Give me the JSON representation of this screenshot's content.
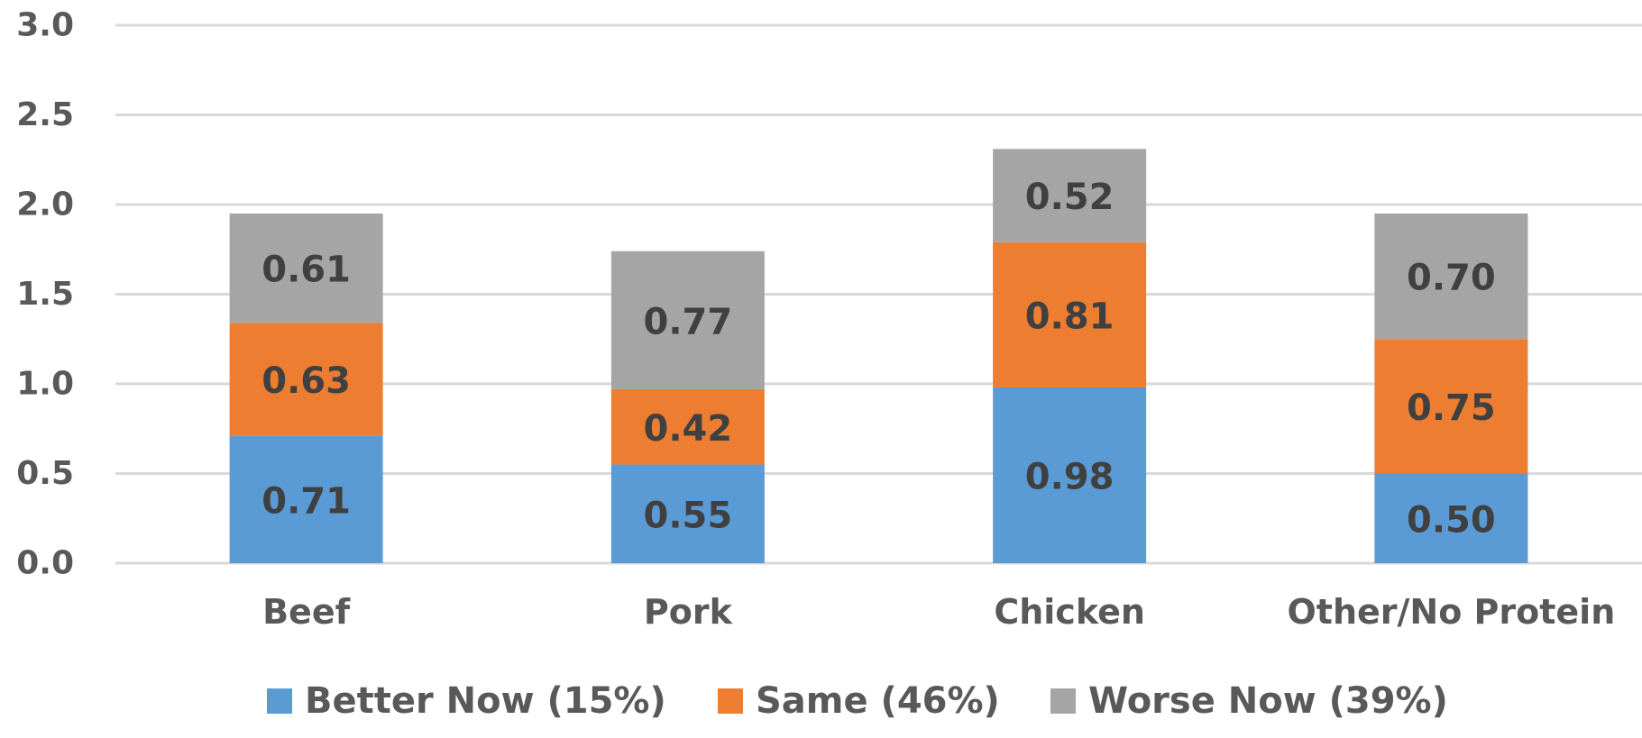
{
  "chart_data": {
    "type": "bar",
    "stacked": true,
    "categories": [
      "Beef",
      "Pork",
      "Chicken",
      "Other/No Protein"
    ],
    "series": [
      {
        "name": "Better Now (15%)",
        "color": "#5b9bd5",
        "values": [
          0.71,
          0.55,
          0.98,
          0.5
        ]
      },
      {
        "name": "Same (46%)",
        "color": "#ed7d31",
        "values": [
          0.63,
          0.42,
          0.81,
          0.75
        ]
      },
      {
        "name": "Worse Now (39%)",
        "color": "#a5a5a5",
        "values": [
          0.61,
          0.77,
          0.52,
          0.7
        ]
      }
    ],
    "value_labels": [
      [
        "0.71",
        "0.55",
        "0.98",
        "0.50"
      ],
      [
        "0.63",
        "0.42",
        "0.81",
        "0.75"
      ],
      [
        "0.61",
        "0.77",
        "0.52",
        "0.70"
      ]
    ],
    "y_ticks": [
      "0.0",
      "0.5",
      "1.0",
      "1.5",
      "2.0",
      "2.5",
      "3.0"
    ],
    "ylim": [
      0,
      3.0
    ],
    "grid": true,
    "legend_position": "bottom"
  }
}
